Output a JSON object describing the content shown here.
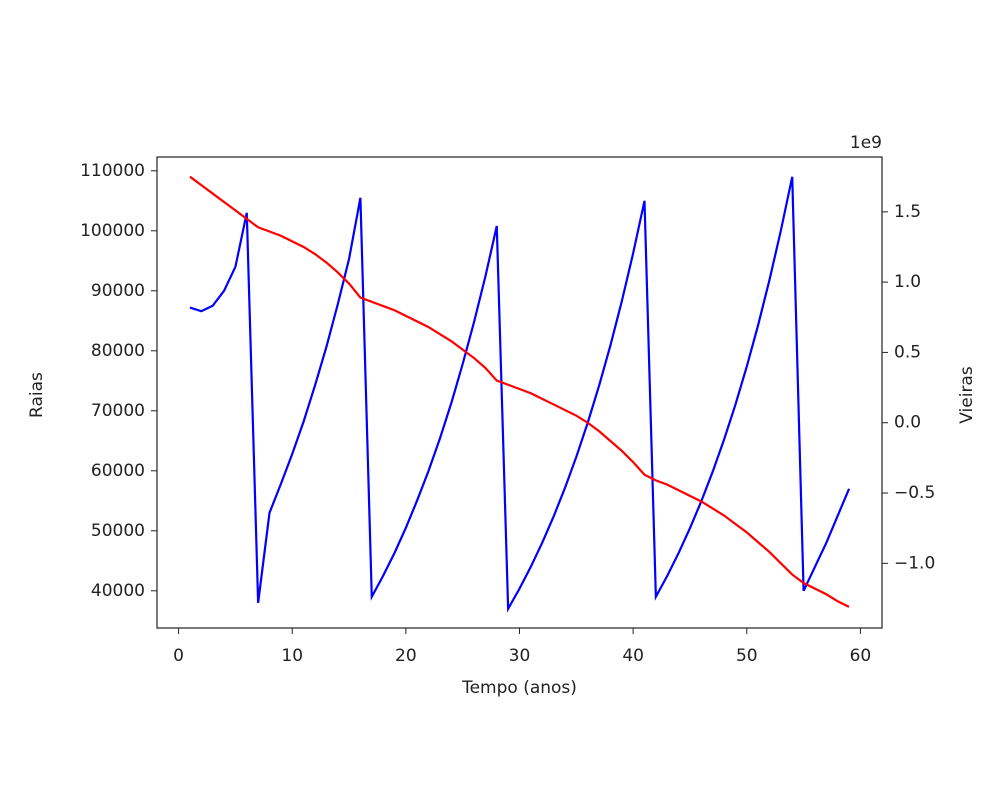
{
  "chart_data": {
    "type": "line",
    "xlabel": "Tempo (anos)",
    "ylabel": "Raias",
    "y2label": "Vieiras",
    "y2_offset_label": "1e9",
    "x": [
      1,
      2,
      3,
      4,
      5,
      6,
      7,
      8,
      9,
      10,
      11,
      12,
      13,
      14,
      15,
      16,
      17,
      18,
      19,
      20,
      21,
      22,
      23,
      24,
      25,
      26,
      27,
      28,
      29,
      30,
      31,
      32,
      33,
      34,
      35,
      36,
      37,
      38,
      39,
      40,
      41,
      42,
      43,
      44,
      45,
      46,
      47,
      48,
      49,
      50,
      51,
      52,
      53,
      54,
      55,
      56,
      57,
      58,
      59
    ],
    "xlim": [
      -1.9,
      61.9
    ],
    "xticks": [
      0,
      10,
      20,
      30,
      40,
      50,
      60
    ],
    "ylim": [
      33800,
      112300
    ],
    "yticks": [
      40000,
      50000,
      60000,
      70000,
      80000,
      90000,
      100000,
      110000
    ],
    "y2lim": [
      -1.46,
      1.89
    ],
    "y2ticks": [
      {
        "value": -1,
        "label": "−1.0"
      },
      {
        "value": -0.5,
        "label": "−0.5"
      },
      {
        "value": 0,
        "label": "0.0"
      },
      0.5,
      {
        "value": 1,
        "label": "1.0"
      },
      1.5
    ],
    "series": [
      {
        "color": "#0000ff",
        "axis": "y",
        "values": [
          87200,
          86600,
          87500,
          90000,
          94000,
          103000,
          38000,
          53000,
          57800,
          62800,
          68200,
          74200,
          80600,
          87700,
          95300,
          105500,
          39000,
          42500,
          46300,
          50500,
          55100,
          60000,
          65400,
          71300,
          77800,
          84800,
          92400,
          100800,
          37000,
          40360,
          44020,
          48020,
          52380,
          57140,
          62330,
          67990,
          74160,
          80890,
          88240,
          96250,
          105000,
          39000,
          42490,
          46290,
          50430,
          54930,
          59850,
          65200,
          71020,
          77380,
          84290,
          91830,
          100040,
          109000,
          40000,
          44000,
          48000,
          52500,
          57000
        ]
      },
      {
        "color": "#ff0000",
        "axis": "y2",
        "values": [
          1.75,
          1.69,
          1.63,
          1.57,
          1.51,
          1.45,
          1.39,
          1.36,
          1.33,
          1.29,
          1.25,
          1.2,
          1.14,
          1.07,
          0.99,
          0.89,
          0.86,
          0.83,
          0.8,
          0.76,
          0.72,
          0.68,
          0.63,
          0.58,
          0.52,
          0.46,
          0.39,
          0.3,
          0.27,
          0.24,
          0.21,
          0.17,
          0.13,
          0.09,
          0.05,
          0.0,
          -0.06,
          -0.13,
          -0.2,
          -0.28,
          -0.37,
          -0.41,
          -0.44,
          -0.48,
          -0.52,
          -0.56,
          -0.61,
          -0.66,
          -0.72,
          -0.78,
          -0.85,
          -0.92,
          -1.0,
          -1.08,
          -1.14,
          -1.18,
          -1.22,
          -1.27,
          -1.31
        ]
      }
    ]
  }
}
